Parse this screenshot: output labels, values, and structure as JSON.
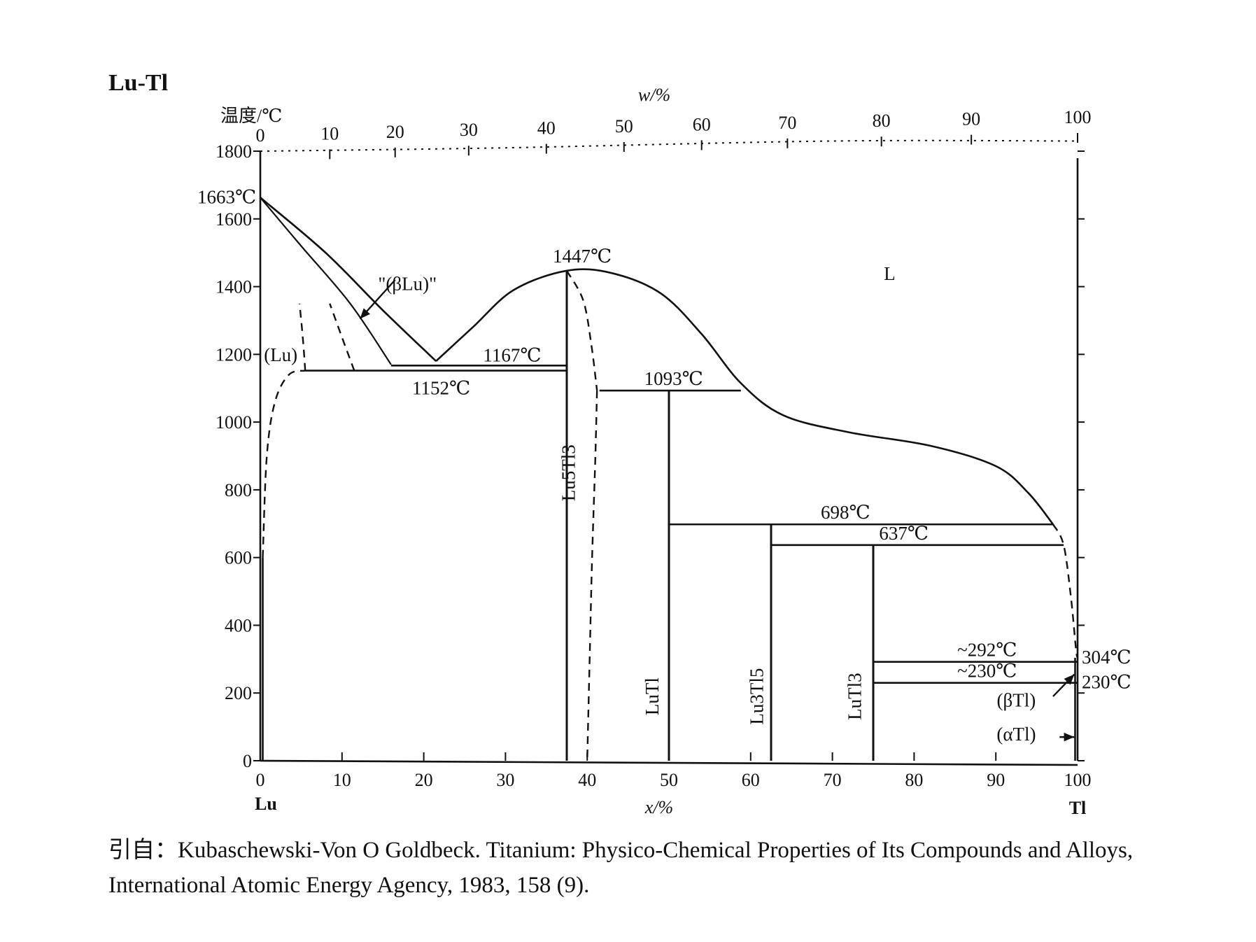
{
  "title": "Lu-Tl",
  "caption": "引自：Kubaschewski-Von O Goldbeck. Titanium: Physico-Chemical Properties of Its Compounds and Alloys, International Atomic Energy Agency, 1983, 158 (9).",
  "chart_data": {
    "type": "phase-diagram",
    "system": "Lu-Tl",
    "ylabel": "温度/℃",
    "xlabel_bottom": "x/%",
    "xlabel_top": "w/%",
    "left_element": "Lu",
    "right_element": "Tl",
    "ylim": [
      0,
      1800
    ],
    "xlim": [
      0,
      100
    ],
    "y_ticks": [
      0,
      200,
      400,
      600,
      800,
      1000,
      1200,
      1400,
      1600,
      1800
    ],
    "x_ticks_bottom": [
      0,
      10,
      20,
      30,
      40,
      50,
      60,
      70,
      80,
      90,
      100
    ],
    "x_ticks_top": [
      0,
      10,
      20,
      30,
      40,
      50,
      60,
      70,
      80,
      90,
      100
    ],
    "top_axis_positions_x": [
      0,
      8.5,
      16.5,
      25.5,
      35,
      44.5,
      54,
      64.5,
      76,
      87,
      100
    ],
    "annotations": [
      {
        "text": "1663℃",
        "x": 0,
        "y": 1663
      },
      {
        "text": "1447℃",
        "x": 37.5,
        "y": 1447
      },
      {
        "text": "1167℃",
        "x": 30,
        "y": 1167
      },
      {
        "text": "1152℃",
        "x": 22,
        "y": 1152
      },
      {
        "text": "1093℃",
        "x": 48,
        "y": 1093
      },
      {
        "text": "698℃",
        "x": 72,
        "y": 698
      },
      {
        "text": "637℃",
        "x": 80,
        "y": 637
      },
      {
        "text": "~292℃",
        "x": 87,
        "y": 292
      },
      {
        "text": "~230℃",
        "x": 87,
        "y": 230
      },
      {
        "text": "304℃",
        "x": 100,
        "y": 304
      },
      {
        "text": "230℃",
        "x": 100,
        "y": 230
      }
    ],
    "phases": [
      {
        "label": "L",
        "x": 77,
        "y": 1420
      },
      {
        "label": "(Lu)",
        "x": 2.5,
        "y": 1180
      },
      {
        "label": "\"(βLu)\"",
        "x": 18,
        "y": 1390
      },
      {
        "label": "Lu5Tl3",
        "x": 38.5,
        "y": 850
      },
      {
        "label": "LuTl",
        "x": 48.7,
        "y": 190
      },
      {
        "label": "Lu3Tl5",
        "x": 61.5,
        "y": 190
      },
      {
        "label": "LuTl3",
        "x": 73.5,
        "y": 190
      },
      {
        "label": "(βTl)",
        "x": 92.5,
        "y": 160
      },
      {
        "label": "(αTl)",
        "x": 92.5,
        "y": 60
      }
    ],
    "invariants": [
      {
        "T": 1152,
        "x_from": 5.5,
        "x_to": 37.5
      },
      {
        "T": 1167,
        "x_from": 16,
        "x_to": 37.5
      },
      {
        "T": 1093,
        "x_from": 41.5,
        "x_to": 58.8
      },
      {
        "T": 698,
        "x_from": 50,
        "x_to": 97
      },
      {
        "T": 637,
        "x_from": 62.5,
        "x_to": 98.3
      },
      {
        "T": 292,
        "x_from": 75,
        "x_to": 100
      },
      {
        "T": 230,
        "x_from": 75,
        "x_to": 100
      }
    ],
    "compounds": [
      {
        "name": "Lu5Tl3",
        "x": 37.5,
        "T_from": 0,
        "T_to": 1447
      },
      {
        "name": "LuTl",
        "x": 50,
        "T_from": 0,
        "T_to": 1093
      },
      {
        "name": "Lu3Tl5",
        "x": 62.5,
        "T_from": 0,
        "T_to": 698
      },
      {
        "name": "LuTl3",
        "x": 75,
        "T_from": 0,
        "T_to": 637
      }
    ],
    "liquidus": [
      [
        [
          0,
          1663
        ],
        [
          8,
          1500
        ],
        [
          15,
          1330
        ],
        [
          21.5,
          1180
        ]
      ],
      [
        [
          21.5,
          1180
        ],
        [
          26,
          1280
        ],
        [
          31,
          1390
        ],
        [
          37.5,
          1447
        ],
        [
          43,
          1440
        ],
        [
          49,
          1380
        ],
        [
          54,
          1260
        ],
        [
          58.8,
          1115
        ],
        [
          64,
          1020
        ],
        [
          72,
          970
        ],
        [
          82,
          930
        ],
        [
          90,
          870
        ],
        [
          94,
          790
        ],
        [
          97,
          698
        ]
      ]
    ],
    "beta_lu_lines": [
      [
        [
          0,
          1663
        ],
        [
          5,
          1520
        ],
        [
          11,
          1350
        ],
        [
          16,
          1170
        ]
      ],
      [
        [
          0,
          1663
        ],
        [
          8,
          1500
        ],
        [
          15,
          1330
        ],
        [
          21.5,
          1180
        ]
      ]
    ],
    "dashed_boundaries": [
      [
        [
          0.3,
          600
        ],
        [
          0.8,
          900
        ],
        [
          1.8,
          1060
        ],
        [
          3.5,
          1140
        ],
        [
          5.5,
          1152
        ]
      ],
      [
        [
          5.5,
          1152
        ],
        [
          5.2,
          1250
        ],
        [
          4.8,
          1350
        ]
      ],
      [
        [
          11.5,
          1152
        ],
        [
          10,
          1250
        ],
        [
          8.5,
          1350
        ]
      ],
      [
        [
          37.5,
          1447
        ],
        [
          39.5,
          1360
        ],
        [
          40.5,
          1230
        ],
        [
          41.2,
          1093
        ]
      ],
      [
        [
          41.2,
          1093
        ],
        [
          41,
          900
        ],
        [
          40.6,
          600
        ],
        [
          40.3,
          300
        ],
        [
          40,
          0
        ]
      ],
      [
        [
          97,
          698
        ],
        [
          98.3,
          637
        ],
        [
          99.2,
          480
        ],
        [
          99.8,
          330
        ],
        [
          100,
          304
        ]
      ]
    ]
  }
}
